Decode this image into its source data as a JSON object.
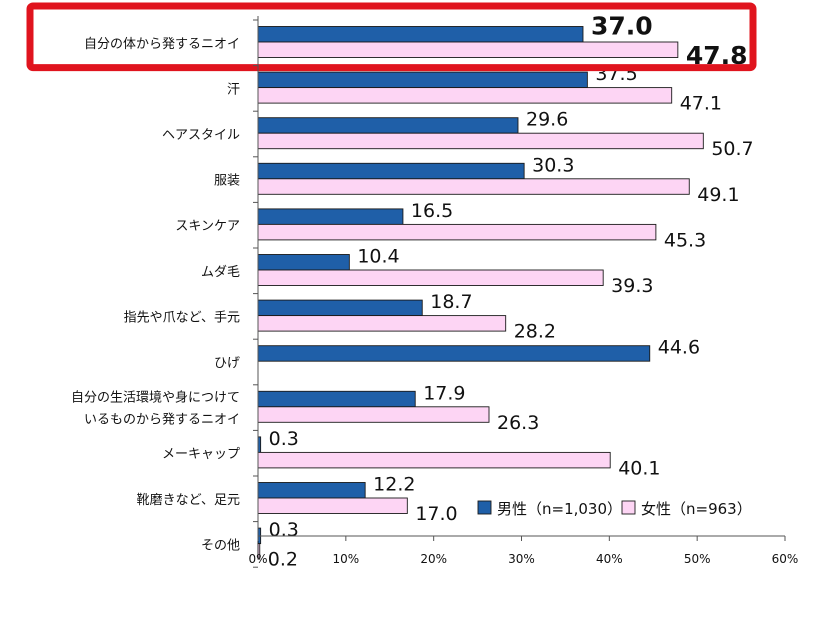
{
  "chart_data": {
    "type": "bar",
    "orientation": "horizontal",
    "categories": [
      [
        "自分の体から発するニオイ"
      ],
      [
        "汗"
      ],
      [
        "ヘアスタイル"
      ],
      [
        "服装"
      ],
      [
        "スキンケア"
      ],
      [
        "ムダ毛"
      ],
      [
        "指先や爪など、手元"
      ],
      [
        "ひげ"
      ],
      [
        "自分の生活環境や身につけて",
        "いるものから発するニオイ"
      ],
      [
        "メーキャップ"
      ],
      [
        "靴磨きなど、足元"
      ],
      [
        "その他"
      ]
    ],
    "series": [
      {
        "name": "男性（n=1,030）",
        "color": "#1f5fa8",
        "values": [
          37.0,
          37.5,
          29.6,
          30.3,
          16.5,
          10.4,
          18.7,
          44.6,
          17.9,
          0.3,
          12.2,
          0.3
        ],
        "labels": [
          "37.0",
          "37.5",
          "29.6",
          "30.3",
          "16.5",
          "10.4",
          "18.7",
          "44.6",
          "17.9",
          "0.3",
          "12.2",
          "0.3"
        ]
      },
      {
        "name": "女性（n=963）",
        "color": "#fdd5f4",
        "values": [
          47.8,
          47.1,
          50.7,
          49.1,
          45.3,
          39.3,
          28.2,
          null,
          26.3,
          40.1,
          17.0,
          0.2
        ],
        "labels": [
          "47.8",
          "47.1",
          "50.7",
          "49.1",
          "45.3",
          "39.3",
          "28.2",
          "",
          "26.3",
          "40.1",
          "17.0",
          "0.2"
        ]
      }
    ],
    "xlim": [
      0,
      60
    ],
    "x_ticks": [
      "0%",
      "10%",
      "20%",
      "30%",
      "40%",
      "50%",
      "60%"
    ],
    "legend_position": "bottom-right",
    "highlighted_category_index": 0,
    "highlight_color": "#e0141e"
  }
}
